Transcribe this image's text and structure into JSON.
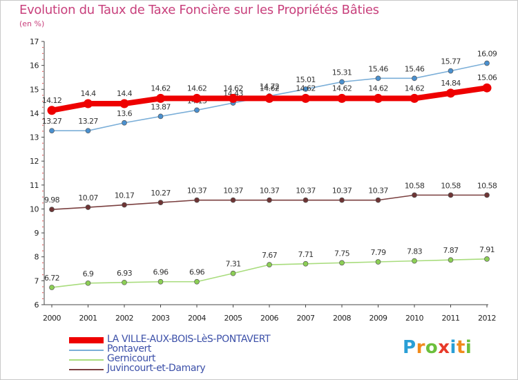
{
  "title": "Evolution du Taux de Taxe Foncière sur les Propriétés Bâties",
  "unit_label": "(en %)",
  "logo": {
    "letters": [
      "P",
      "r",
      "o",
      "x",
      "i",
      "t",
      "i"
    ],
    "colors": [
      "#2a9fd6",
      "#f18a1c",
      "#6cbf3c",
      "#e83a2a",
      "#2a9fd6",
      "#f18a1c",
      "#6cbf3c"
    ]
  },
  "chart_data": {
    "type": "line",
    "title": "Evolution du Taux de Taxe Foncière sur les Propriétés Bâties",
    "ylabel": "(en %)",
    "xlabel": "",
    "ylim": [
      6,
      17
    ],
    "yticks": [
      6,
      7,
      8,
      9,
      10,
      11,
      12,
      13,
      14,
      15,
      16,
      17
    ],
    "x": [
      "2000",
      "2001",
      "2002",
      "2003",
      "2004",
      "2005",
      "2006",
      "2007",
      "2008",
      "2009",
      "2010",
      "2011",
      "2012"
    ],
    "series": [
      {
        "name": "Juvincourt-et-Damary",
        "color": "#7a3f3f",
        "marker": "#6e3434",
        "values": [
          9.98,
          10.07,
          10.17,
          10.27,
          10.37,
          10.37,
          10.37,
          10.37,
          10.37,
          10.37,
          10.58,
          10.58,
          10.58
        ],
        "labels": [
          "9.98",
          "10.07",
          "10.17",
          "10.27",
          "10.37",
          "10.37",
          "10.37",
          "10.37",
          "10.37",
          "10.37",
          "10.58",
          "10.58",
          "10.58"
        ]
      },
      {
        "name": "Gernicourt",
        "color": "#a8dc7c",
        "marker": "#8ccf55",
        "values": [
          6.72,
          6.9,
          6.93,
          6.96,
          6.96,
          7.31,
          7.67,
          7.71,
          7.75,
          7.79,
          7.83,
          7.87,
          7.91
        ],
        "labels": [
          "6.72",
          "6.9",
          "6.93",
          "6.96",
          "6.96",
          "7.31",
          "7.67",
          "7.71",
          "7.75",
          "7.79",
          "7.83",
          "7.87",
          "7.91"
        ]
      },
      {
        "name": "Pontavert",
        "color": "#7aaed8",
        "marker": "#4a90cf",
        "values": [
          13.27,
          13.27,
          13.6,
          13.87,
          14.13,
          14.43,
          14.72,
          15.01,
          15.31,
          15.46,
          15.46,
          15.77,
          16.09
        ],
        "labels": [
          "13.27",
          "13.27",
          "13.6",
          "13.87",
          "14.13",
          "14.43",
          "14.72",
          "15.01",
          "15.31",
          "15.46",
          "15.46",
          "15.77",
          "16.09"
        ]
      },
      {
        "name": "LA VILLE-AUX-BOIS-LèS-PONTAVERT",
        "color": "#ee0000",
        "marker": "#ee0000",
        "values": [
          14.12,
          14.4,
          14.4,
          14.62,
          14.62,
          14.62,
          14.62,
          14.62,
          14.62,
          14.62,
          14.62,
          14.84,
          15.06
        ],
        "labels": [
          "14.12",
          "14.4",
          "14.4",
          "14.62",
          "14.62",
          "14.62",
          "14.62",
          "14.62",
          "14.62",
          "14.62",
          "14.62",
          "14.84",
          "15.06"
        ]
      }
    ],
    "legend": [
      "LA VILLE-AUX-BOIS-LèS-PONTAVERT",
      "Pontavert",
      "Gernicourt",
      "Juvincourt-et-Damary"
    ],
    "legend_position": "bottom-left",
    "grid": false
  }
}
